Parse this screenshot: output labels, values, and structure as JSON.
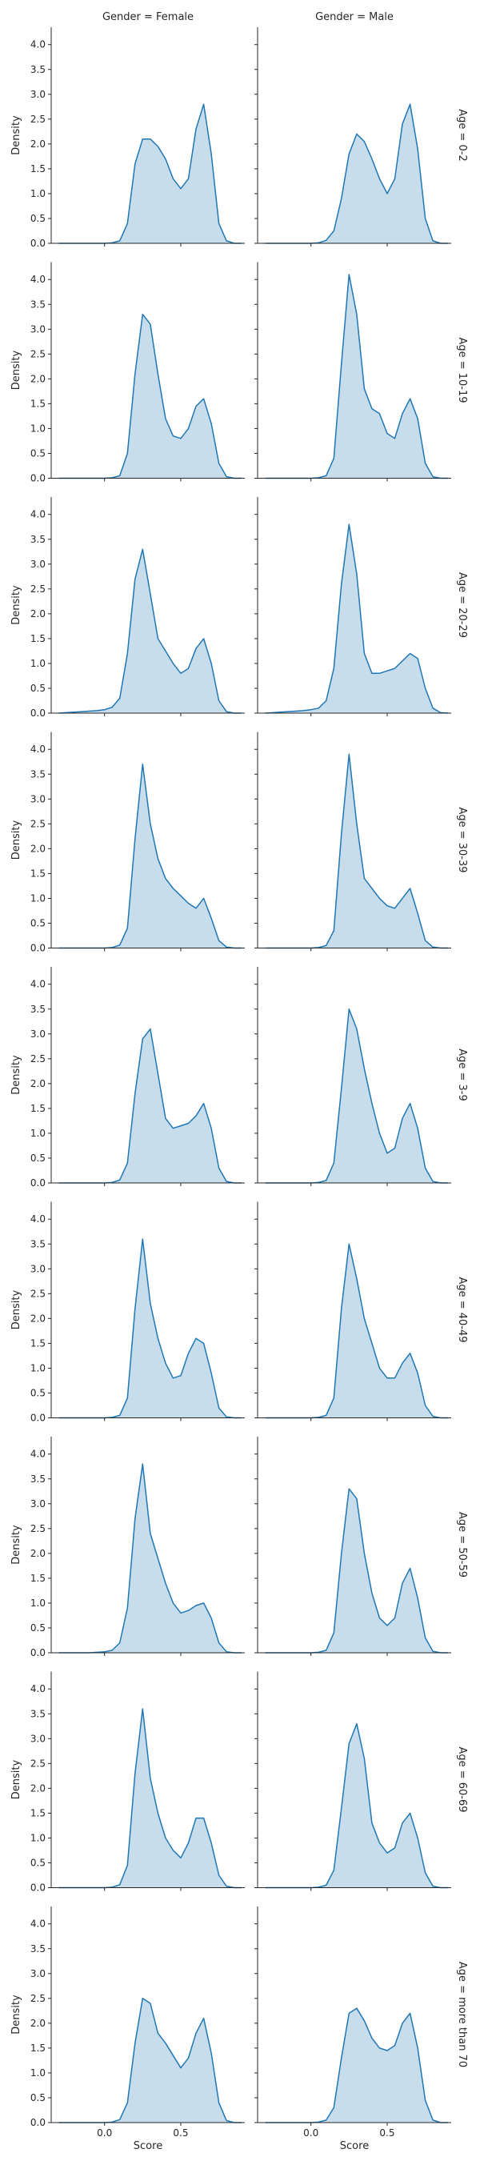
{
  "chart_data": {
    "type": "area",
    "subtype": "kde-facet-grid",
    "xlabel": "Score",
    "ylabel": "Density",
    "xlim": [
      -0.35,
      0.92
    ],
    "ylim": [
      0,
      4.35
    ],
    "x_ticks": [
      0.0,
      0.5
    ],
    "y_ticks": [
      0.0,
      0.5,
      1.0,
      1.5,
      2.0,
      2.5,
      3.0,
      3.5,
      4.0
    ],
    "x_tick_labels": [
      "0.0",
      "0.5"
    ],
    "y_tick_labels": [
      "0.0",
      "0.5",
      "1.0",
      "1.5",
      "2.0",
      "2.5",
      "3.0",
      "3.5",
      "4.0"
    ],
    "column_titles": [
      "Gender = Female",
      "Gender = Male"
    ],
    "row_titles": [
      "Age = 0-2",
      "Age = 10-19",
      "Age = 20-29",
      "Age = 30-39",
      "Age = 3-9",
      "Age = 40-49",
      "Age = 50-59",
      "Age = 60-69",
      "Age = more than 70"
    ],
    "grid": false,
    "line_color": "#1f77b4",
    "fill_color": "#1f77b4",
    "x": [
      -0.3,
      -0.25,
      -0.2,
      -0.15,
      -0.1,
      -0.05,
      0.0,
      0.05,
      0.1,
      0.15,
      0.2,
      0.25,
      0.3,
      0.35,
      0.4,
      0.45,
      0.5,
      0.55,
      0.6,
      0.65,
      0.7,
      0.75,
      0.8,
      0.85,
      0.9
    ],
    "panels": [
      {
        "row": "Age = 0-2",
        "col": "Gender = Female",
        "density": [
          0,
          0,
          0,
          0,
          0,
          0,
          0,
          0.01,
          0.05,
          0.4,
          1.6,
          2.1,
          2.1,
          1.95,
          1.7,
          1.3,
          1.1,
          1.3,
          2.3,
          2.8,
          1.8,
          0.4,
          0.05,
          0,
          0
        ]
      },
      {
        "row": "Age = 0-2",
        "col": "Gender = Male",
        "density": [
          0,
          0,
          0,
          0,
          0,
          0,
          0,
          0.01,
          0.06,
          0.25,
          0.9,
          1.8,
          2.2,
          2.05,
          1.7,
          1.3,
          1.0,
          1.3,
          2.4,
          2.8,
          1.9,
          0.5,
          0.05,
          0,
          0
        ]
      },
      {
        "row": "Age = 10-19",
        "col": "Gender = Female",
        "density": [
          0,
          0,
          0,
          0,
          0,
          0,
          0,
          0.01,
          0.05,
          0.5,
          2.1,
          3.3,
          3.1,
          2.1,
          1.2,
          0.85,
          0.8,
          1.0,
          1.45,
          1.6,
          1.1,
          0.3,
          0.03,
          0,
          0
        ]
      },
      {
        "row": "Age = 10-19",
        "col": "Gender = Male",
        "density": [
          0,
          0,
          0,
          0,
          0,
          0,
          0,
          0.01,
          0.05,
          0.4,
          2.3,
          4.1,
          3.3,
          1.8,
          1.4,
          1.3,
          0.9,
          0.8,
          1.3,
          1.6,
          1.2,
          0.3,
          0.03,
          0,
          0
        ]
      },
      {
        "row": "Age = 20-29",
        "col": "Gender = Female",
        "density": [
          0,
          0.01,
          0.02,
          0.03,
          0.04,
          0.05,
          0.07,
          0.12,
          0.3,
          1.2,
          2.7,
          3.3,
          2.4,
          1.5,
          1.25,
          1.0,
          0.8,
          0.9,
          1.3,
          1.5,
          1.0,
          0.25,
          0.03,
          0,
          0
        ]
      },
      {
        "row": "Age = 20-29",
        "col": "Gender = Male",
        "density": [
          0,
          0.01,
          0.02,
          0.03,
          0.04,
          0.05,
          0.07,
          0.1,
          0.25,
          0.9,
          2.6,
          3.8,
          2.8,
          1.2,
          0.8,
          0.8,
          0.85,
          0.9,
          1.05,
          1.2,
          1.1,
          0.5,
          0.1,
          0.01,
          0
        ]
      },
      {
        "row": "Age = 30-39",
        "col": "Gender = Female",
        "density": [
          0,
          0,
          0,
          0,
          0,
          0,
          0,
          0.01,
          0.06,
          0.4,
          2.2,
          3.7,
          2.5,
          1.8,
          1.4,
          1.2,
          1.05,
          0.9,
          0.8,
          1.0,
          0.6,
          0.15,
          0.02,
          0,
          0
        ]
      },
      {
        "row": "Age = 30-39",
        "col": "Gender = Male",
        "density": [
          0,
          0,
          0,
          0,
          0,
          0,
          0,
          0.01,
          0.05,
          0.35,
          2.3,
          3.9,
          2.5,
          1.4,
          1.2,
          1.0,
          0.85,
          0.8,
          1.0,
          1.2,
          0.7,
          0.15,
          0.02,
          0,
          0
        ]
      },
      {
        "row": "Age = 3-9",
        "col": "Gender = Female",
        "density": [
          0,
          0,
          0,
          0,
          0,
          0,
          0,
          0.01,
          0.06,
          0.4,
          1.8,
          2.9,
          3.1,
          2.2,
          1.3,
          1.1,
          1.15,
          1.2,
          1.35,
          1.6,
          1.1,
          0.3,
          0.03,
          0,
          0
        ]
      },
      {
        "row": "Age = 3-9",
        "col": "Gender = Male",
        "density": [
          0,
          0,
          0,
          0,
          0,
          0,
          0,
          0.01,
          0.05,
          0.4,
          1.9,
          3.5,
          3.1,
          2.3,
          1.6,
          1.0,
          0.6,
          0.7,
          1.3,
          1.6,
          1.1,
          0.3,
          0.03,
          0,
          0
        ]
      },
      {
        "row": "Age = 40-49",
        "col": "Gender = Female",
        "density": [
          0,
          0,
          0,
          0,
          0,
          0,
          0,
          0.01,
          0.05,
          0.4,
          2.2,
          3.6,
          2.3,
          1.6,
          1.1,
          0.8,
          0.85,
          1.3,
          1.6,
          1.5,
          0.9,
          0.2,
          0.02,
          0,
          0
        ]
      },
      {
        "row": "Age = 40-49",
        "col": "Gender = Male",
        "density": [
          0,
          0,
          0,
          0,
          0,
          0,
          0,
          0.01,
          0.05,
          0.4,
          2.2,
          3.5,
          2.8,
          2.0,
          1.5,
          1.0,
          0.8,
          0.8,
          1.1,
          1.3,
          0.9,
          0.25,
          0.03,
          0,
          0
        ]
      },
      {
        "row": "Age = 50-59",
        "col": "Gender = Female",
        "density": [
          0,
          0,
          0,
          0,
          0,
          0.01,
          0.02,
          0.05,
          0.2,
          0.9,
          2.7,
          3.8,
          2.4,
          1.9,
          1.4,
          1.0,
          0.8,
          0.85,
          0.95,
          1.0,
          0.7,
          0.2,
          0.02,
          0,
          0
        ]
      },
      {
        "row": "Age = 50-59",
        "col": "Gender = Male",
        "density": [
          0,
          0,
          0,
          0,
          0,
          0,
          0,
          0.01,
          0.05,
          0.4,
          2.0,
          3.3,
          3.1,
          2.0,
          1.2,
          0.7,
          0.55,
          0.7,
          1.4,
          1.7,
          1.1,
          0.3,
          0.03,
          0,
          0
        ]
      },
      {
        "row": "Age = 60-69",
        "col": "Gender = Female",
        "density": [
          0,
          0,
          0,
          0,
          0,
          0,
          0,
          0.01,
          0.06,
          0.45,
          2.3,
          3.6,
          2.2,
          1.5,
          1.0,
          0.75,
          0.6,
          0.9,
          1.4,
          1.4,
          0.9,
          0.25,
          0.03,
          0,
          0
        ]
      },
      {
        "row": "Age = 60-69",
        "col": "Gender = Male",
        "density": [
          0,
          0,
          0,
          0,
          0,
          0,
          0,
          0.01,
          0.05,
          0.35,
          1.6,
          2.9,
          3.3,
          2.6,
          1.3,
          0.9,
          0.7,
          0.8,
          1.3,
          1.5,
          1.0,
          0.3,
          0.03,
          0,
          0
        ]
      },
      {
        "row": "Age = more than 70",
        "col": "Gender = Female",
        "density": [
          0,
          0,
          0,
          0,
          0,
          0,
          0,
          0.01,
          0.06,
          0.4,
          1.6,
          2.5,
          2.4,
          1.8,
          1.6,
          1.35,
          1.1,
          1.3,
          1.8,
          2.1,
          1.4,
          0.4,
          0.04,
          0,
          0
        ]
      },
      {
        "row": "Age = more than 70",
        "col": "Gender = Male",
        "density": [
          0,
          0,
          0,
          0,
          0,
          0,
          0,
          0.01,
          0.05,
          0.3,
          1.3,
          2.2,
          2.3,
          2.05,
          1.7,
          1.5,
          1.45,
          1.55,
          2.0,
          2.2,
          1.5,
          0.45,
          0.05,
          0,
          0
        ]
      }
    ]
  }
}
